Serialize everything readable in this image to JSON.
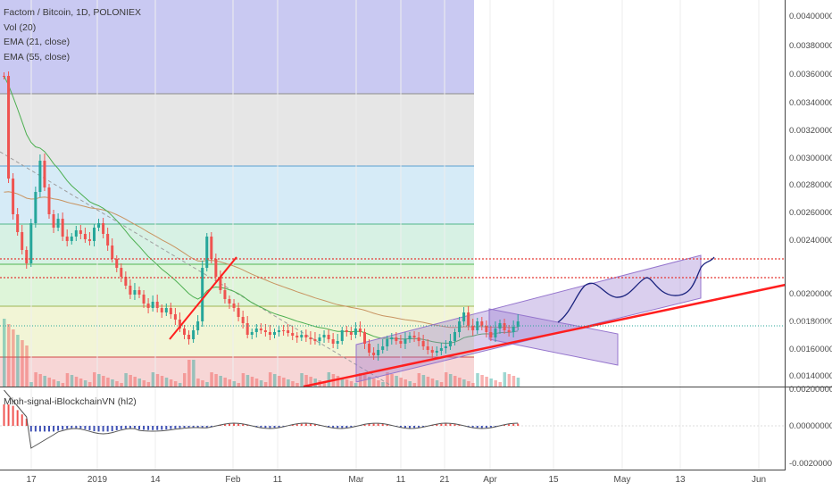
{
  "legend": {
    "title": "Factom / Bitcoin, 1D, POLONIEX",
    "indicators": [
      "Vol (20)",
      "EMA (21, close)",
      "EMA (55, close)"
    ]
  },
  "oscillator": {
    "title": "Minh-signal-iBlockchainVN (hl2)",
    "ticks": [
      "0.00200000",
      "0.00000000",
      "-0.00200000"
    ]
  },
  "price_axis": {
    "ticks": [
      "0.00400000",
      "0.00380000",
      "0.00360000",
      "0.00340000",
      "0.00320000",
      "0.00300000",
      "0.00280000",
      "0.00260000",
      "0.00240000",
      "0.00200000",
      "0.00180000",
      "0.00160000",
      "0.00140000"
    ]
  },
  "price_tags": [
    {
      "text": "0.00222727",
      "color": "#e53935"
    },
    {
      "text": "0.00209853",
      "color": "#e53935"
    },
    {
      "text": "0.00174889",
      "color": "#26a69a"
    }
  ],
  "time_axis": {
    "labels": [
      "17",
      "2019",
      "14",
      "Feb",
      "11",
      "Mar",
      "11",
      "21",
      "Apr",
      "15",
      "May",
      "13",
      "Jun"
    ]
  },
  "colors": {
    "up": "#26a69a",
    "down": "#ef5350",
    "trendline": "#ff1f1f",
    "channel": "#9575cd",
    "ema21": "#4caf50",
    "ema55": "#c89360",
    "projection": "#1a237e"
  }
}
